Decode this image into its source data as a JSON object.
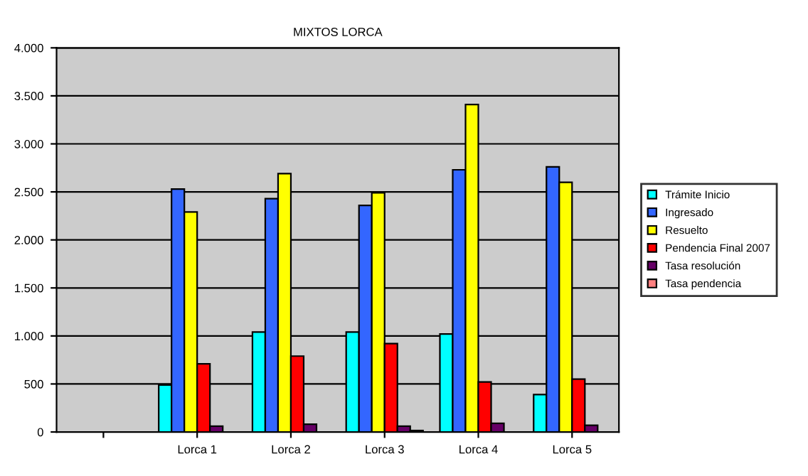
{
  "chart_data": {
    "type": "bar",
    "title": "MIXTOS LORCA",
    "categories": [
      null,
      "Lorca 1",
      "Lorca 2",
      "Lorca 3",
      "Lorca 4",
      "Lorca 5"
    ],
    "series": [
      {
        "name": "Trámite Inicio",
        "color": "#00ffff",
        "values": [
          null,
          490,
          1040,
          1040,
          1020,
          390
        ]
      },
      {
        "name": "Ingresado",
        "color": "#3366ff",
        "values": [
          null,
          2530,
          2430,
          2360,
          2730,
          2760
        ]
      },
      {
        "name": "Resuelto",
        "color": "#ffff00",
        "values": [
          null,
          2290,
          2690,
          2490,
          3410,
          2600
        ]
      },
      {
        "name": "Pendencia Final 2007",
        "color": "#ff0000",
        "values": [
          null,
          710,
          790,
          920,
          520,
          550
        ]
      },
      {
        "name": "Tasa resolución",
        "color": "#660066",
        "values": [
          null,
          60,
          80,
          60,
          90,
          70
        ]
      },
      {
        "name": "Tasa pendencia",
        "color": "#ff8080",
        "values": [
          null,
          null,
          null,
          15,
          null,
          null
        ]
      }
    ],
    "ylim": [
      0,
      4000
    ],
    "yticks": [
      0,
      500,
      {
        "value": 1000,
        "label": "1.000"
      },
      {
        "value": 1500,
        "label": "1.500"
      },
      {
        "value": 2000,
        "label": "2.000"
      },
      {
        "value": 2500,
        "label": "2.500"
      },
      {
        "value": 3000,
        "label": "3.000"
      },
      {
        "value": 3500,
        "label": "3.500"
      },
      {
        "value": 4000,
        "label": "4.000"
      }
    ],
    "grid": "y",
    "legend": "right"
  }
}
